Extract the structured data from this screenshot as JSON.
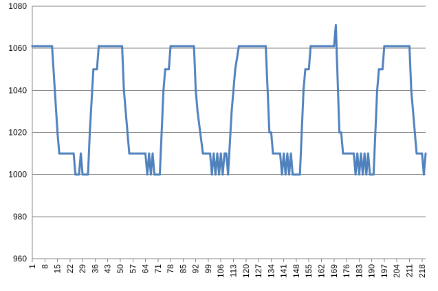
{
  "chart_data": {
    "type": "line",
    "title": "",
    "xlabel": "",
    "ylabel": "",
    "ylim": [
      960,
      1080
    ],
    "y_ticks": [
      960,
      980,
      1000,
      1020,
      1040,
      1060,
      1080
    ],
    "x_range": [
      1,
      220
    ],
    "x_tick_labels": [
      "1",
      "8",
      "15",
      "22",
      "29",
      "36",
      "43",
      "50",
      "57",
      "64",
      "71",
      "78",
      "85",
      "92",
      "99",
      "106",
      "113",
      "120",
      "127",
      "134",
      "141",
      "148",
      "155",
      "162",
      "169",
      "176",
      "183",
      "190",
      "197",
      "204",
      "211",
      "218"
    ],
    "grid": "horizontal",
    "legend": "none",
    "series": [
      {
        "color": "#4f81bd",
        "points": [
          [
            1,
            1061
          ],
          [
            12,
            1061
          ],
          [
            15,
            1020
          ],
          [
            16,
            1010
          ],
          [
            24,
            1010
          ],
          [
            25,
            1000
          ],
          [
            27,
            1000
          ],
          [
            28,
            1010
          ],
          [
            29,
            1000
          ],
          [
            32,
            1000
          ],
          [
            33,
            1020
          ],
          [
            35,
            1050
          ],
          [
            37,
            1050
          ],
          [
            38,
            1061
          ],
          [
            51,
            1061
          ],
          [
            52,
            1040
          ],
          [
            53,
            1030
          ],
          [
            55,
            1010
          ],
          [
            64,
            1010
          ],
          [
            65,
            1000
          ],
          [
            66,
            1010
          ],
          [
            67,
            1000
          ],
          [
            68,
            1010
          ],
          [
            69,
            1000
          ],
          [
            72,
            1000
          ],
          [
            73,
            1020
          ],
          [
            74,
            1040
          ],
          [
            75,
            1050
          ],
          [
            77,
            1050
          ],
          [
            78,
            1061
          ],
          [
            91,
            1061
          ],
          [
            92,
            1040
          ],
          [
            93,
            1030
          ],
          [
            96,
            1010
          ],
          [
            100,
            1010
          ],
          [
            101,
            1000
          ],
          [
            102,
            1010
          ],
          [
            103,
            1000
          ],
          [
            104,
            1010
          ],
          [
            105,
            1000
          ],
          [
            106,
            1010
          ],
          [
            107,
            1000
          ],
          [
            108,
            1010
          ],
          [
            109,
            1010
          ],
          [
            110,
            1000
          ],
          [
            112,
            1030
          ],
          [
            114,
            1050
          ],
          [
            116,
            1061
          ],
          [
            131,
            1061
          ],
          [
            133,
            1020
          ],
          [
            134,
            1020
          ],
          [
            135,
            1010
          ],
          [
            139,
            1010
          ],
          [
            140,
            1000
          ],
          [
            141,
            1010
          ],
          [
            142,
            1000
          ],
          [
            143,
            1010
          ],
          [
            144,
            1000
          ],
          [
            145,
            1010
          ],
          [
            146,
            1000
          ],
          [
            150,
            1000
          ],
          [
            151,
            1020
          ],
          [
            152,
            1040
          ],
          [
            153,
            1050
          ],
          [
            155,
            1050
          ],
          [
            156,
            1061
          ],
          [
            169,
            1061
          ],
          [
            170,
            1071
          ],
          [
            172,
            1020
          ],
          [
            173,
            1020
          ],
          [
            174,
            1010
          ],
          [
            180,
            1010
          ],
          [
            181,
            1000
          ],
          [
            182,
            1010
          ],
          [
            183,
            1000
          ],
          [
            184,
            1010
          ],
          [
            185,
            1000
          ],
          [
            186,
            1010
          ],
          [
            187,
            1000
          ],
          [
            188,
            1010
          ],
          [
            189,
            1000
          ],
          [
            191,
            1000
          ],
          [
            192,
            1020
          ],
          [
            193,
            1040
          ],
          [
            194,
            1050
          ],
          [
            196,
            1050
          ],
          [
            197,
            1061
          ],
          [
            211,
            1061
          ],
          [
            212,
            1040
          ],
          [
            214,
            1020
          ],
          [
            215,
            1010
          ],
          [
            218,
            1010
          ],
          [
            219,
            1000
          ],
          [
            220,
            1010
          ]
        ]
      }
    ]
  }
}
